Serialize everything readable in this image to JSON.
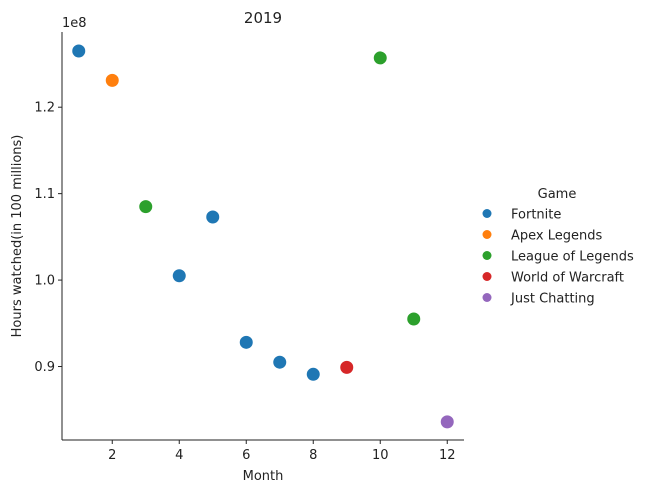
{
  "chart_data": {
    "type": "scatter",
    "title": "2019",
    "xlabel": "Month",
    "ylabel": "Hours watched(in 100 millions)",
    "y_multiplier_label": "1e8",
    "xlim": [
      0.5,
      12.5
    ],
    "ylim": [
      0.815,
      1.287
    ],
    "x_ticks": [
      2,
      4,
      6,
      8,
      10,
      12
    ],
    "x_tick_labels": [
      "2",
      "4",
      "6",
      "8",
      "10",
      "12"
    ],
    "y_ticks": [
      0.9,
      1.0,
      1.1,
      1.2
    ],
    "y_tick_labels": [
      "0.9",
      "1.0",
      "1.1",
      "1.2"
    ],
    "grid": false,
    "legend": {
      "title": "Game",
      "placement": "right",
      "entries": [
        {
          "name": "Fortnite",
          "color": "#1f77b4"
        },
        {
          "name": "Apex Legends",
          "color": "#ff7f0e"
        },
        {
          "name": "League of Legends",
          "color": "#2ca02c"
        },
        {
          "name": "World of Warcraft",
          "color": "#d62728"
        },
        {
          "name": "Just Chatting",
          "color": "#9467bd"
        }
      ]
    },
    "points": [
      {
        "x": 1,
        "y": 1.265,
        "series": "Fortnite"
      },
      {
        "x": 2,
        "y": 1.231,
        "series": "Apex Legends"
      },
      {
        "x": 3,
        "y": 1.085,
        "series": "League of Legends"
      },
      {
        "x": 4,
        "y": 1.005,
        "series": "Fortnite"
      },
      {
        "x": 5,
        "y": 1.073,
        "series": "Fortnite"
      },
      {
        "x": 6,
        "y": 0.928,
        "series": "Fortnite"
      },
      {
        "x": 7,
        "y": 0.905,
        "series": "Fortnite"
      },
      {
        "x": 8,
        "y": 0.891,
        "series": "Fortnite"
      },
      {
        "x": 9,
        "y": 0.899,
        "series": "World of Warcraft"
      },
      {
        "x": 10,
        "y": 1.257,
        "series": "League of Legends"
      },
      {
        "x": 11,
        "y": 0.955,
        "series": "League of Legends"
      },
      {
        "x": 12,
        "y": 0.836,
        "series": "Just Chatting"
      }
    ]
  }
}
